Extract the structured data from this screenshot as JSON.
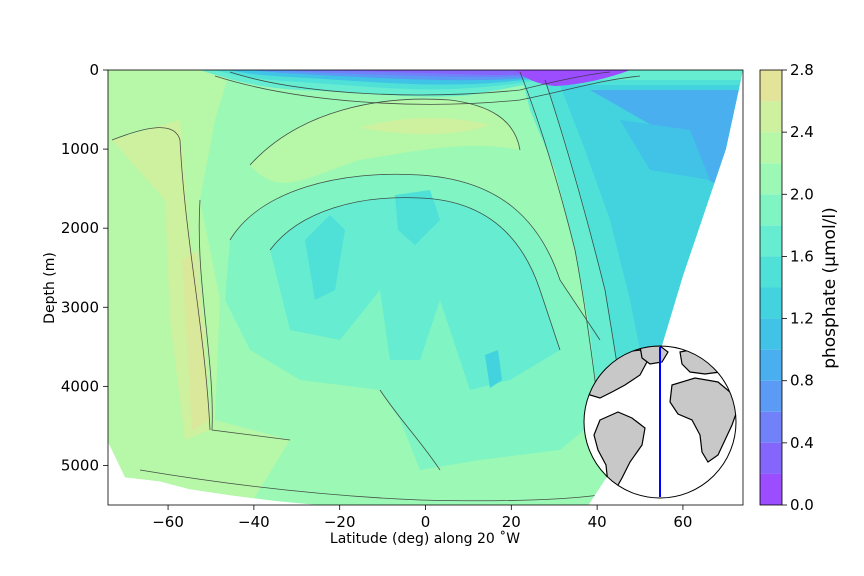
{
  "chart_data": {
    "type": "contour",
    "xlabel": "Latitude (deg) along 20 ˚W",
    "ylabel": "Depth (m)",
    "colorbar_label": "phosphate (μmol/l)",
    "xlim": [
      -74,
      74
    ],
    "ylim": [
      5500,
      0
    ],
    "x_ticks": [
      -60,
      -40,
      -20,
      0,
      20,
      40,
      60
    ],
    "x_tick_labels": [
      "−60",
      "−40",
      "−20",
      "0",
      "20",
      "40",
      "60"
    ],
    "y_ticks": [
      0,
      1000,
      2000,
      3000,
      4000,
      5000
    ],
    "y_tick_labels": [
      "0",
      "1000",
      "2000",
      "3000",
      "4000",
      "5000"
    ],
    "colorbar_ticks": [
      0.0,
      0.4,
      0.8,
      1.2,
      1.6,
      2.0,
      2.4,
      2.8
    ],
    "colorbar_tick_labels": [
      "0.0",
      "0.4",
      "0.8",
      "1.2",
      "1.6",
      "2.0",
      "2.4",
      "2.8"
    ],
    "colorbar_levels": [
      0.0,
      0.2,
      0.4,
      0.6,
      0.8,
      1.0,
      1.2,
      1.4,
      1.6,
      1.8,
      2.0,
      2.2,
      2.4,
      2.6,
      2.8
    ],
    "colorbar_colors": [
      "#9b4dff",
      "#8566fd",
      "#7081fa",
      "#5b9af5",
      "#4aafee",
      "#40c3e6",
      "#42d3df",
      "#4fe0d8",
      "#66ecd0",
      "#80f5c3",
      "#9cf8b5",
      "#b6f7a8",
      "#cdf19f",
      "#e3e39a"
    ],
    "colormap": "rainbow",
    "seafloor_depth_by_latitude": [
      [
        -74,
        4700
      ],
      [
        -70,
        5150
      ],
      [
        -62,
        5200
      ],
      [
        -55,
        5300
      ],
      [
        -45,
        5380
      ],
      [
        -35,
        5450
      ],
      [
        -25,
        5500
      ],
      [
        -15,
        5500
      ],
      [
        0,
        5500
      ],
      [
        15,
        5500
      ],
      [
        30,
        5500
      ],
      [
        38,
        5500
      ],
      [
        44,
        5000
      ],
      [
        48,
        4500
      ],
      [
        52,
        4000
      ],
      [
        55,
        3500
      ],
      [
        60,
        2600
      ],
      [
        65,
        1800
      ],
      [
        70,
        1000
      ],
      [
        74,
        0
      ]
    ],
    "field_samples_phosphate_by_latitude": [
      {
        "lat": -60,
        "surface": 2.2,
        "mid_3000m": 2.2,
        "bottom": 2.2
      },
      {
        "lat": -40,
        "surface": 2.0,
        "mid_3000m": 2.0,
        "bottom": 2.1
      },
      {
        "lat": -20,
        "surface": 0.7,
        "mid_3000m": 1.6,
        "bottom": 2.1
      },
      {
        "lat": 0,
        "surface": 0.6,
        "mid_3000m": 1.7,
        "bottom": 2.0
      },
      {
        "lat": 20,
        "surface": 0.5,
        "mid_3000m": 1.6,
        "bottom": 1.8
      },
      {
        "lat": 30,
        "surface": 0.1,
        "mid_3000m": 1.4,
        "bottom": 1.6
      },
      {
        "lat": 50,
        "surface": 0.9,
        "mid_3000m": 1.2,
        "bottom": 1.3
      },
      {
        "lat": 65,
        "surface": 0.9,
        "mid_3000m": 1.1,
        "bottom": 1.1
      }
    ],
    "inset_map": {
      "type": "globe",
      "section_line": "meridian",
      "section_line_color": "#0000ff",
      "land_color": "#c8c8c8"
    }
  }
}
